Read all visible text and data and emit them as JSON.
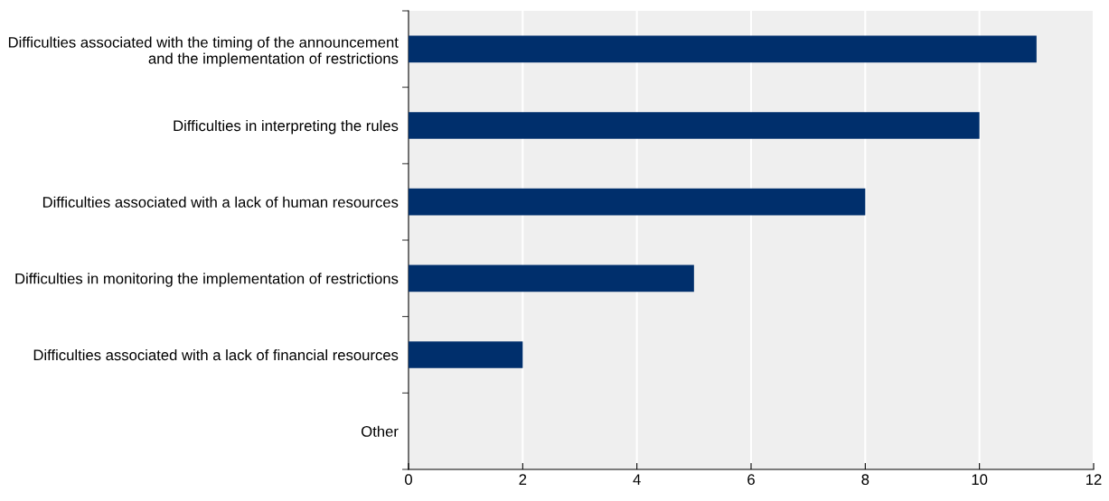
{
  "chart_data": {
    "type": "bar",
    "orientation": "horizontal",
    "categories": [
      "Difficulties associated with the timing of the announcement\nand the implementation of restrictions",
      "Difficulties in interpreting the rules",
      "Difficulties associated with a lack of human resources",
      "Difficulties in monitoring the implementation of restrictions",
      "Difficulties associated with a lack of financial resources",
      "Other"
    ],
    "values": [
      11,
      10,
      8,
      5,
      2,
      0
    ],
    "color": "#002f6c",
    "xlim": [
      0,
      12
    ],
    "xticks": [
      0,
      2,
      4,
      6,
      8,
      10,
      12
    ],
    "grid": "x",
    "legend": false
  }
}
